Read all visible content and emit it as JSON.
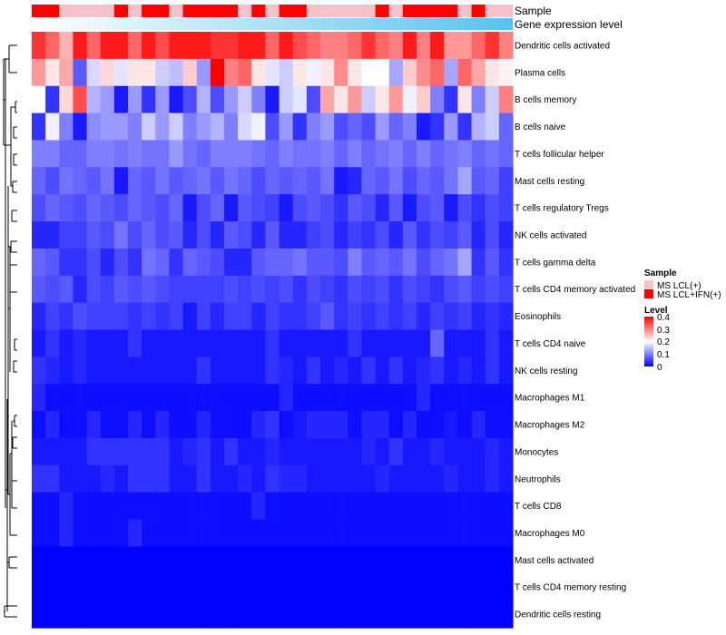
{
  "chart_data": {
    "type": "heatmap",
    "value_range": [
      0,
      0.4
    ],
    "annotation_bars": [
      {
        "name": "Sample"
      },
      {
        "name": "Gene expression level"
      }
    ],
    "sample_legend": {
      "title": "Sample",
      "entries": [
        {
          "label": "MS LCL(+)",
          "color": "#f4c2c8"
        },
        {
          "label": "MS LCL+IFN(+)",
          "color": "#ff0000"
        }
      ]
    },
    "level_legend": {
      "title": "Level",
      "ticks": [
        "0.4",
        "0.3",
        "0.2",
        "0.1",
        "0"
      ]
    },
    "colors": {
      "low": "#0000ff",
      "mid": "#ffffff",
      "high": "#ff0000",
      "expr_start": "#ffffff",
      "expr_end": "#56c3ef"
    },
    "sample_groups": [
      1,
      1,
      0,
      0,
      0,
      0,
      1,
      0,
      1,
      1,
      0,
      1,
      1,
      1,
      1,
      0,
      1,
      0,
      1,
      1,
      0,
      0,
      0,
      0,
      0,
      1,
      0,
      1,
      1,
      1,
      1,
      0,
      1,
      0,
      0
    ],
    "rows": [
      "Dendritic cells activated",
      "Plasma cells",
      "B cells memory",
      "B cells naive",
      "T cells follicular helper",
      "Mast cells resting",
      "T cells regulatory  Tregs",
      "NK cells activated",
      "T cells gamma delta",
      "T cells CD4 memory activated",
      "Eosinophils",
      "T cells CD4 naive",
      "NK cells resting",
      "Macrophages M1",
      "Macrophages M2",
      "Monocytes",
      "Neutrophils",
      "T cells CD8",
      "Macrophages M0",
      "Mast cells activated",
      "T cells CD4 memory resting",
      "Dendritic cells resting"
    ],
    "values": [
      [
        0.36,
        0.32,
        0.26,
        0.38,
        0.32,
        0.38,
        0.38,
        0.32,
        0.38,
        0.34,
        0.38,
        0.38,
        0.38,
        0.36,
        0.36,
        0.38,
        0.38,
        0.32,
        0.38,
        0.34,
        0.32,
        0.3,
        0.3,
        0.32,
        0.36,
        0.32,
        0.3,
        0.38,
        0.3,
        0.38,
        0.28,
        0.28,
        0.32,
        0.36,
        0.3
      ],
      [
        0.28,
        0.22,
        0.27,
        0.07,
        0.17,
        0.23,
        0.18,
        0.22,
        0.22,
        0.16,
        0.15,
        0.24,
        0.12,
        0.4,
        0.3,
        0.32,
        0.22,
        0.18,
        0.16,
        0.22,
        0.19,
        0.22,
        0.29,
        0.22,
        0.2,
        0.2,
        0.13,
        0.24,
        0.29,
        0.32,
        0.13,
        0.32,
        0.27,
        0.22,
        0.21
      ],
      [
        0.2,
        0.04,
        0.23,
        0.34,
        0.14,
        0.12,
        0.02,
        0.12,
        0.04,
        0.12,
        0.02,
        0.06,
        0.14,
        0.06,
        0.12,
        0.16,
        0.1,
        0.02,
        0.16,
        0.18,
        0.06,
        0.27,
        0.22,
        0.28,
        0.16,
        0.22,
        0.28,
        0.19,
        0.24,
        0.1,
        0.04,
        0.22,
        0.1,
        0.16,
        0.3
      ],
      [
        0.04,
        0.19,
        0.1,
        0.02,
        0.11,
        0.12,
        0.12,
        0.1,
        0.16,
        0.12,
        0.16,
        0.1,
        0.12,
        0.14,
        0.1,
        0.17,
        0.19,
        0.06,
        0.12,
        0.04,
        0.1,
        0.12,
        0.06,
        0.08,
        0.06,
        0.12,
        0.08,
        0.1,
        0.02,
        0.04,
        0.12,
        0.04,
        0.14,
        0.16,
        0.08
      ],
      [
        0.1,
        0.1,
        0.08,
        0.08,
        0.1,
        0.1,
        0.09,
        0.1,
        0.09,
        0.09,
        0.12,
        0.09,
        0.08,
        0.1,
        0.1,
        0.1,
        0.09,
        0.08,
        0.1,
        0.09,
        0.09,
        0.1,
        0.08,
        0.1,
        0.08,
        0.09,
        0.1,
        0.08,
        0.1,
        0.08,
        0.09,
        0.1,
        0.08,
        0.09,
        0.08
      ],
      [
        0.08,
        0.06,
        0.09,
        0.08,
        0.07,
        0.09,
        0.02,
        0.08,
        0.07,
        0.09,
        0.07,
        0.08,
        0.09,
        0.07,
        0.09,
        0.08,
        0.06,
        0.08,
        0.07,
        0.08,
        0.07,
        0.09,
        0.02,
        0.03,
        0.08,
        0.07,
        0.09,
        0.06,
        0.08,
        0.07,
        0.09,
        0.13,
        0.07,
        0.08,
        0.05
      ],
      [
        0.06,
        0.08,
        0.07,
        0.06,
        0.08,
        0.07,
        0.06,
        0.08,
        0.07,
        0.06,
        0.08,
        0.02,
        0.06,
        0.08,
        0.02,
        0.07,
        0.06,
        0.05,
        0.02,
        0.06,
        0.07,
        0.06,
        0.04,
        0.07,
        0.06,
        0.03,
        0.07,
        0.02,
        0.06,
        0.07,
        0.02,
        0.06,
        0.04,
        0.06,
        0.05
      ],
      [
        0.03,
        0.03,
        0.05,
        0.05,
        0.07,
        0.06,
        0.09,
        0.06,
        0.08,
        0.06,
        0.07,
        0.03,
        0.06,
        0.03,
        0.07,
        0.06,
        0.03,
        0.07,
        0.03,
        0.03,
        0.05,
        0.06,
        0.03,
        0.05,
        0.04,
        0.06,
        0.03,
        0.07,
        0.04,
        0.06,
        0.05,
        0.07,
        0.03,
        0.06,
        0.03
      ],
      [
        0.08,
        0.07,
        0.04,
        0.04,
        0.06,
        0.03,
        0.06,
        0.04,
        0.09,
        0.08,
        0.04,
        0.08,
        0.07,
        0.06,
        0.03,
        0.03,
        0.07,
        0.08,
        0.08,
        0.09,
        0.07,
        0.07,
        0.06,
        0.1,
        0.07,
        0.08,
        0.07,
        0.09,
        0.06,
        0.08,
        0.09,
        0.13,
        0.04,
        0.07,
        0.04
      ],
      [
        0.07,
        0.06,
        0.07,
        0.03,
        0.06,
        0.05,
        0.07,
        0.06,
        0.07,
        0.06,
        0.05,
        0.05,
        0.05,
        0.05,
        0.06,
        0.05,
        0.06,
        0.05,
        0.06,
        0.04,
        0.06,
        0.05,
        0.04,
        0.06,
        0.05,
        0.06,
        0.04,
        0.06,
        0.05,
        0.04,
        0.06,
        0.07,
        0.05,
        0.06,
        0.05
      ],
      [
        0.03,
        0.05,
        0.04,
        0.06,
        0.05,
        0.05,
        0.05,
        0.04,
        0.05,
        0.04,
        0.05,
        0.02,
        0.05,
        0.03,
        0.05,
        0.05,
        0.03,
        0.05,
        0.04,
        0.04,
        0.05,
        0.07,
        0.04,
        0.05,
        0.04,
        0.05,
        0.04,
        0.05,
        0.03,
        0.05,
        0.04,
        0.05,
        0.03,
        0.04,
        0.03
      ],
      [
        0.02,
        0.04,
        0.02,
        0.03,
        0.02,
        0.02,
        0.02,
        0.04,
        0.02,
        0.02,
        0.02,
        0.02,
        0.02,
        0.02,
        0.02,
        0.02,
        0.02,
        0.04,
        0.02,
        0.02,
        0.02,
        0.02,
        0.02,
        0.04,
        0.02,
        0.02,
        0.02,
        0.02,
        0.02,
        0.08,
        0.02,
        0.02,
        0.02,
        0.04,
        0.02
      ],
      [
        0.04,
        0.03,
        0.02,
        0.03,
        0.02,
        0.02,
        0.02,
        0.02,
        0.02,
        0.02,
        0.02,
        0.02,
        0.04,
        0.02,
        0.02,
        0.02,
        0.02,
        0.04,
        0.03,
        0.02,
        0.04,
        0.02,
        0.03,
        0.02,
        0.04,
        0.02,
        0.04,
        0.02,
        0.03,
        0.04,
        0.02,
        0.03,
        0.02,
        0.04,
        0.02
      ],
      [
        0.03,
        0.01,
        0.01,
        0.01,
        0.01,
        0.01,
        0.01,
        0.01,
        0.01,
        0.01,
        0.01,
        0.01,
        0.01,
        0.01,
        0.01,
        0.01,
        0.01,
        0.01,
        0.03,
        0.01,
        0.01,
        0.01,
        0.01,
        0.01,
        0.01,
        0.01,
        0.01,
        0.01,
        0.03,
        0.01,
        0.01,
        0.01,
        0.01,
        0.01,
        0.01
      ],
      [
        0.01,
        0.03,
        0.01,
        0.01,
        0.03,
        0.01,
        0.01,
        0.03,
        0.01,
        0.03,
        0.01,
        0.01,
        0.03,
        0.01,
        0.01,
        0.01,
        0.03,
        0.04,
        0.01,
        0.02,
        0.03,
        0.03,
        0.03,
        0.01,
        0.03,
        0.03,
        0.01,
        0.03,
        0.01,
        0.01,
        0.02,
        0.01,
        0.03,
        0.01,
        0.01
      ],
      [
        0.02,
        0.02,
        0.02,
        0.02,
        0.04,
        0.04,
        0.04,
        0.04,
        0.04,
        0.04,
        0.02,
        0.03,
        0.04,
        0.02,
        0.04,
        0.02,
        0.02,
        0.03,
        0.02,
        0.02,
        0.02,
        0.02,
        0.02,
        0.02,
        0.03,
        0.02,
        0.04,
        0.02,
        0.02,
        0.03,
        0.02,
        0.02,
        0.02,
        0.03,
        0.02
      ],
      [
        0.04,
        0.04,
        0.02,
        0.02,
        0.02,
        0.03,
        0.02,
        0.04,
        0.04,
        0.04,
        0.02,
        0.02,
        0.04,
        0.02,
        0.02,
        0.03,
        0.02,
        0.04,
        0.03,
        0.03,
        0.02,
        0.02,
        0.02,
        0.02,
        0.02,
        0.03,
        0.02,
        0.02,
        0.02,
        0.02,
        0.03,
        0.02,
        0.02,
        0.03,
        0.02
      ],
      [
        0.01,
        0.01,
        0.03,
        0.01,
        0.01,
        0.01,
        0.01,
        0.01,
        0.01,
        0.01,
        0.01,
        0.01,
        0.01,
        0.01,
        0.01,
        0.01,
        0.03,
        0.01,
        0.01,
        0.01,
        0.01,
        0.01,
        0.01,
        0.01,
        0.01,
        0.01,
        0.01,
        0.01,
        0.01,
        0.01,
        0.01,
        0.01,
        0.01,
        0.01,
        0.01
      ],
      [
        0.01,
        0.01,
        0.03,
        0.01,
        0.01,
        0.01,
        0.01,
        0.03,
        0.01,
        0.01,
        0.01,
        0.01,
        0.01,
        0.01,
        0.01,
        0.01,
        0.01,
        0.01,
        0.01,
        0.01,
        0.01,
        0.01,
        0.01,
        0.01,
        0.01,
        0.01,
        0.01,
        0.01,
        0.01,
        0.01,
        0.01,
        0.01,
        0.01,
        0.01,
        0.01
      ],
      [
        0.0,
        0.0,
        0.0,
        0.0,
        0.0,
        0.0,
        0.0,
        0.0,
        0.0,
        0.0,
        0.0,
        0.0,
        0.0,
        0.0,
        0.0,
        0.0,
        0.0,
        0.0,
        0.0,
        0.0,
        0.0,
        0.0,
        0.0,
        0.0,
        0.0,
        0.0,
        0.0,
        0.0,
        0.0,
        0.0,
        0.0,
        0.0,
        0.0,
        0.0,
        0.0
      ],
      [
        0.0,
        0.0,
        0.0,
        0.0,
        0.0,
        0.0,
        0.0,
        0.0,
        0.0,
        0.0,
        0.0,
        0.0,
        0.0,
        0.0,
        0.0,
        0.0,
        0.0,
        0.0,
        0.0,
        0.0,
        0.0,
        0.0,
        0.0,
        0.0,
        0.0,
        0.0,
        0.0,
        0.0,
        0.0,
        0.0,
        0.0,
        0.0,
        0.0,
        0.0,
        0.0
      ],
      [
        0.0,
        0.0,
        0.0,
        0.0,
        0.0,
        0.0,
        0.0,
        0.0,
        0.0,
        0.0,
        0.0,
        0.0,
        0.0,
        0.0,
        0.0,
        0.0,
        0.0,
        0.0,
        0.0,
        0.0,
        0.0,
        0.0,
        0.0,
        0.0,
        0.0,
        0.0,
        0.0,
        0.0,
        0.0,
        0.0,
        0.0,
        0.0,
        0.0,
        0.0,
        0.0
      ]
    ]
  }
}
